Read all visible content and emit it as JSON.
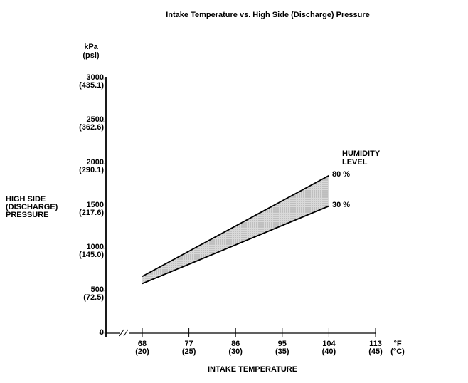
{
  "title": "Intake Temperature vs. High Side (Discharge) Pressure",
  "yaxis": {
    "unit_primary": "kPa",
    "unit_secondary": "(psi)",
    "title_lines": [
      "HIGH SIDE",
      "(DISCHARGE)",
      "PRESSURE"
    ],
    "ticks": [
      {
        "kpa": "3000",
        "psi": "(435.1)"
      },
      {
        "kpa": "2500",
        "psi": "(362.6)"
      },
      {
        "kpa": "2000",
        "psi": "(290.1)"
      },
      {
        "kpa": "1500",
        "psi": "(217.6)"
      },
      {
        "kpa": "1000",
        "psi": "(145.0)"
      },
      {
        "kpa": "500",
        "psi": "(72.5)"
      },
      {
        "kpa": "0"
      }
    ]
  },
  "xaxis": {
    "title": "INTAKE TEMPERATURE",
    "unit_primary": "°F",
    "unit_secondary": "(°C)",
    "ticks": [
      {
        "f": "68",
        "c": "(20)"
      },
      {
        "f": "77",
        "c": "(25)"
      },
      {
        "f": "86",
        "c": "(30)"
      },
      {
        "f": "95",
        "c": "(35)"
      },
      {
        "f": "104",
        "c": "(40)"
      },
      {
        "f": "113",
        "c": "(45)"
      }
    ]
  },
  "legend": {
    "title_lines": [
      "HUMIDITY",
      "LEVEL"
    ],
    "series_labels": [
      "80 %",
      "30 %"
    ]
  },
  "chart_data": {
    "type": "area",
    "title": "Intake Temperature vs. High Side (Discharge) Pressure",
    "xlabel": "INTAKE TEMPERATURE",
    "ylabel": "HIGH SIDE (DISCHARGE) PRESSURE",
    "x_unit": "°F (°C)",
    "y_unit": "kPa (psi)",
    "x_F": [
      68,
      104
    ],
    "x_C": [
      20,
      40
    ],
    "series": [
      {
        "name": "80 %",
        "y_kPa": [
          670,
          1860
        ],
        "y_psi": [
          97.2,
          269.8
        ]
      },
      {
        "name": "30 %",
        "y_kPa": [
          585,
          1500
        ],
        "y_psi": [
          84.8,
          217.6
        ]
      }
    ],
    "band": "shaded region between 30 % and 80 % humidity lines",
    "xlim_F": [
      68,
      113
    ],
    "ylim_kPa": [
      0,
      3000
    ],
    "x_tick_F": [
      68,
      77,
      86,
      95,
      104,
      113
    ],
    "y_tick_kPa": [
      3000,
      2500,
      2000,
      1500,
      1000,
      500,
      0
    ],
    "axis_break_x": true,
    "grid": false,
    "legend_position": "right of band end",
    "colors": {
      "line": "#000000",
      "band_fill": "#d4d4d4",
      "band_dot": "#9a9a9a",
      "background": "#ffffff",
      "text": "#000000"
    }
  }
}
